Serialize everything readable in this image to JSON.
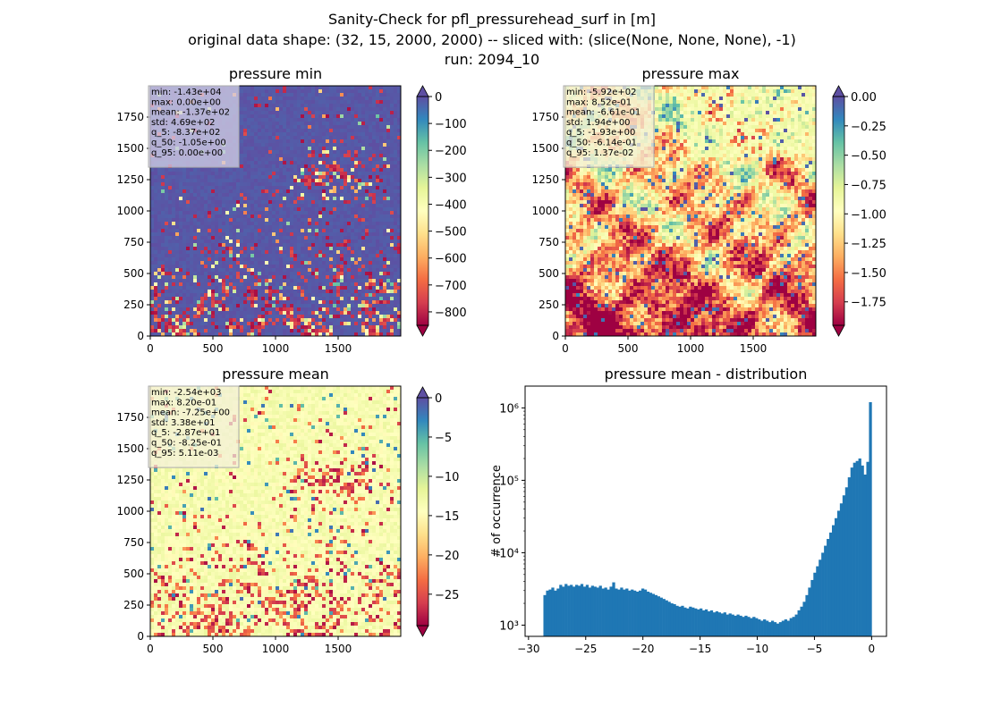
{
  "figure": {
    "title_lines": [
      "Sanity-Check for pfl_pressurehead_surf in [m]",
      "original data shape: (32, 15, 2000, 2000) -- sliced with: (slice(None, None, None), -1)",
      "run: 2094_10"
    ]
  },
  "chart_data": [
    {
      "type": "heatmap",
      "title": "pressure min",
      "xlim": [
        0,
        2000
      ],
      "ylim": [
        0,
        2000
      ],
      "xticks": [
        0,
        500,
        1000,
        1500
      ],
      "yticks": [
        0,
        250,
        500,
        750,
        1000,
        1250,
        1500,
        1750
      ],
      "colormap": "Spectral",
      "colorbar": {
        "range": [
          -850,
          0
        ],
        "ticks": [
          "0",
          "−100",
          "−200",
          "−300",
          "−400",
          "−500",
          "−600",
          "−700",
          "−800"
        ],
        "tick_values": [
          0,
          -100,
          -200,
          -300,
          -400,
          -500,
          -600,
          -700,
          -800
        ],
        "extend": "both"
      },
      "stats": [
        "min: -1.43e+04",
        "max: 0.00e+00",
        "mean: -1.37e+02",
        "std: 4.69e+02",
        "q_5: -8.37e+02",
        "q_50: -1.05e+00",
        "q_95: 0.00e+00"
      ]
    },
    {
      "type": "heatmap",
      "title": "pressure max",
      "xlim": [
        0,
        2000
      ],
      "ylim": [
        0,
        2000
      ],
      "xticks": [
        0,
        500,
        1000,
        1500
      ],
      "yticks": [
        0,
        250,
        500,
        750,
        1000,
        1250,
        1500,
        1750
      ],
      "colormap": "Spectral",
      "colorbar": {
        "range": [
          -1.95,
          0
        ],
        "ticks": [
          "0.00",
          "−0.25",
          "−0.50",
          "−0.75",
          "−1.00",
          "−1.25",
          "−1.50",
          "−1.75"
        ],
        "tick_values": [
          0,
          -0.25,
          -0.5,
          -0.75,
          -1.0,
          -1.25,
          -1.5,
          -1.75
        ],
        "extend": "both"
      },
      "stats": [
        "min: -5.92e+02",
        "max: 8.52e-01",
        "mean: -6.61e-01",
        "std: 1.94e+00",
        "q_5: -1.93e+00",
        "q_50: -6.14e-01",
        "q_95: 1.37e-02"
      ]
    },
    {
      "type": "heatmap",
      "title": "pressure mean",
      "xlim": [
        0,
        2000
      ],
      "ylim": [
        0,
        2000
      ],
      "xticks": [
        0,
        500,
        1000,
        1500
      ],
      "yticks": [
        0,
        250,
        500,
        750,
        1000,
        1250,
        1500,
        1750
      ],
      "colormap": "Spectral",
      "colorbar": {
        "range": [
          -29,
          0
        ],
        "ticks": [
          "0",
          "−5",
          "−10",
          "−15",
          "−20",
          "−25"
        ],
        "tick_values": [
          0,
          -5,
          -10,
          -15,
          -20,
          -25
        ],
        "extend": "both"
      },
      "stats": [
        "min: -2.54e+03",
        "max: 8.20e-01",
        "mean: -7.25e+00",
        "std: 3.38e+01",
        "q_5: -2.87e+01",
        "q_50: -8.25e-01",
        "q_95: 5.11e-03"
      ]
    },
    {
      "type": "bar",
      "title": "pressure mean - distribution",
      "ylabel": "# of occurrence",
      "xlabel": "",
      "xlim": [
        -30.3,
        1.3
      ],
      "ylim": [
        700,
        2000000
      ],
      "yscale": "log",
      "xticks": [
        -30,
        -25,
        -20,
        -15,
        -10,
        -5,
        0
      ],
      "xtick_labels": [
        "−30",
        "−25",
        "−20",
        "−15",
        "−10",
        "−5",
        "0"
      ],
      "yticks": [
        1000,
        10000,
        100000,
        1000000
      ],
      "ytick_labels": [
        "10³",
        "10⁴",
        "10⁵",
        "10⁶"
      ],
      "bar_color": "#1f77b4",
      "bin_edges_range": [
        -28.7,
        0
      ],
      "values": [
        2600,
        3000,
        3100,
        3300,
        3000,
        3200,
        3600,
        3400,
        3700,
        3500,
        3600,
        3400,
        3600,
        3500,
        3700,
        3400,
        3600,
        3300,
        3500,
        3400,
        3300,
        3500,
        3200,
        3300,
        3100,
        3400,
        3900,
        3200,
        3100,
        3300,
        3100,
        3200,
        3000,
        3100,
        3000,
        2900,
        3000,
        3200,
        3100,
        2900,
        2800,
        2700,
        2600,
        2500,
        2400,
        2300,
        2200,
        2100,
        2000,
        1950,
        1850,
        1800,
        1850,
        1750,
        1700,
        1800,
        1750,
        1700,
        1650,
        1700,
        1600,
        1650,
        1550,
        1600,
        1500,
        1550,
        1500,
        1450,
        1500,
        1400,
        1450,
        1400,
        1350,
        1400,
        1350,
        1300,
        1350,
        1300,
        1250,
        1300,
        1250,
        1200,
        1150,
        1200,
        1150,
        1100,
        1150,
        1100,
        1050,
        1100,
        1150,
        1200,
        1150,
        1250,
        1300,
        1400,
        1600,
        1800,
        2100,
        2600,
        3300,
        4200,
        5300,
        6500,
        8000,
        10000,
        12500,
        15500,
        19000,
        24000,
        30000,
        38000,
        48000,
        62000,
        80000,
        110000,
        150000,
        175000,
        185000,
        200000,
        160000,
        120000,
        180000,
        1200000
      ]
    }
  ]
}
